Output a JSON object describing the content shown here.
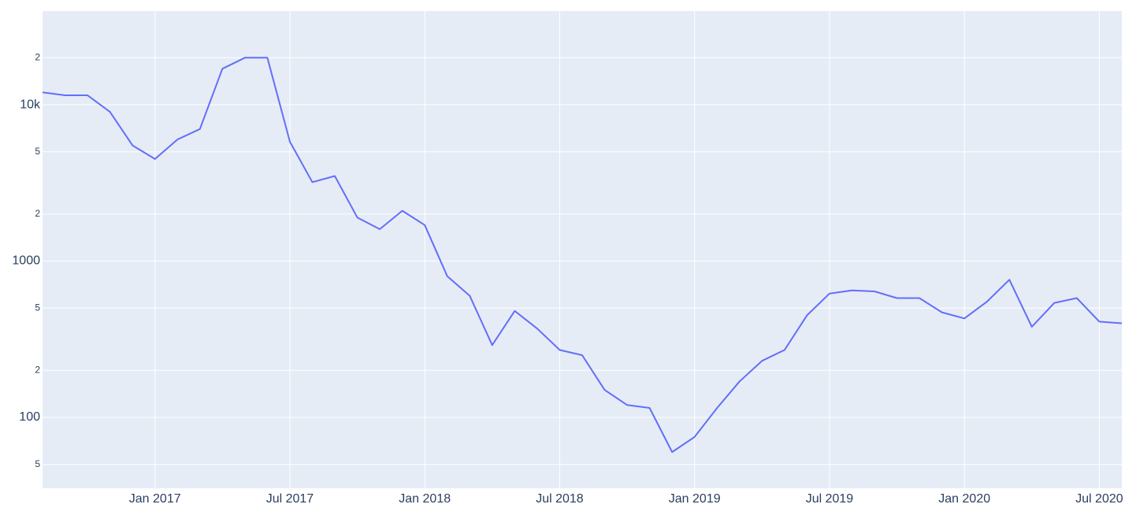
{
  "chart_data": {
    "type": "line",
    "x": [
      "2016-08",
      "2016-09",
      "2016-10",
      "2016-11",
      "2016-12",
      "2017-01",
      "2017-02",
      "2017-03",
      "2017-04",
      "2017-05",
      "2017-06",
      "2017-07",
      "2017-08",
      "2017-09",
      "2017-10",
      "2017-11",
      "2017-12",
      "2018-01",
      "2018-02",
      "2018-03",
      "2018-04",
      "2018-05",
      "2018-06",
      "2018-07",
      "2018-08",
      "2018-09",
      "2018-10",
      "2018-11",
      "2018-12",
      "2019-01",
      "2019-02",
      "2019-03",
      "2019-04",
      "2019-05",
      "2019-06",
      "2019-07",
      "2019-08",
      "2019-09",
      "2019-10",
      "2019-11",
      "2019-12",
      "2020-01",
      "2020-02",
      "2020-03",
      "2020-04",
      "2020-05",
      "2020-06",
      "2020-07",
      "2020-08"
    ],
    "series": [
      {
        "color": "#636efa",
        "values": [
          12000,
          11500,
          11500,
          9000,
          5500,
          4500,
          6000,
          7000,
          17000,
          20000,
          20000,
          5800,
          3200,
          3500,
          1900,
          1600,
          2100,
          1700,
          800,
          600,
          290,
          480,
          370,
          270,
          250,
          150,
          120,
          115,
          60,
          75,
          115,
          170,
          230,
          270,
          450,
          620,
          650,
          640,
          580,
          580,
          470,
          430,
          550,
          760,
          380,
          540,
          580,
          410,
          400
        ]
      }
    ],
    "xlim": [
      "2016-08",
      "2020-08"
    ],
    "xticks": [
      {
        "value": "2017-01",
        "label": "Jan 2017"
      },
      {
        "value": "2017-07",
        "label": "Jul 2017"
      },
      {
        "value": "2018-01",
        "label": "Jan 2018"
      },
      {
        "value": "2018-07",
        "label": "Jul 2018"
      },
      {
        "value": "2019-01",
        "label": "Jan 2019"
      },
      {
        "value": "2019-07",
        "label": "Jul 2019"
      },
      {
        "value": "2020-01",
        "label": "Jan 2020"
      },
      {
        "value": "2020-07",
        "label": "Jul 2020"
      }
    ],
    "ylim": [
      35.2,
      39800
    ],
    "yticks": [
      {
        "value": 50,
        "label": "5"
      },
      100,
      {
        "value": 200,
        "label": "2"
      },
      {
        "value": 500,
        "label": "5"
      },
      1000,
      {
        "value": 2000,
        "label": "2"
      },
      {
        "value": 5000,
        "label": "5"
      },
      {
        "value": 10000,
        "label": "10k"
      },
      {
        "value": 20000,
        "label": "2"
      }
    ],
    "log_y": true,
    "grid": true
  }
}
